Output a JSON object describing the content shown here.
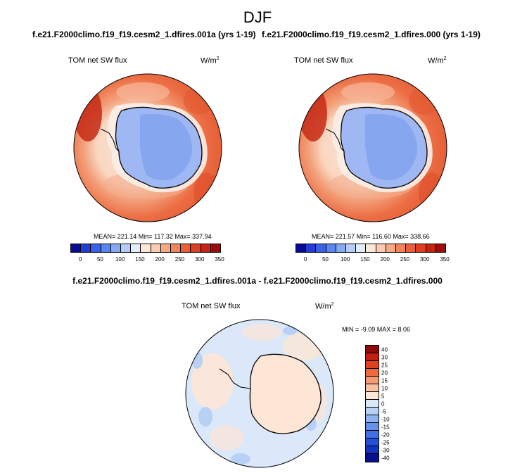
{
  "season": "DJF",
  "panel_a": {
    "title": "f.e21.F2000climo.f19_f19.cesm2_1.dfires.001a (yrs 1-19)",
    "variable": "TOM net SW flux",
    "units": "W/m",
    "units_exp": "2",
    "stats": "MEAN= 221.14   Min= 117.32   Max= 337.94"
  },
  "panel_b": {
    "title": "f.e21.F2000climo.f19_f19.cesm2_1.dfires.000 (yrs 1-19)",
    "variable": "TOM net SW flux",
    "units": "W/m",
    "units_exp": "2",
    "stats": "MEAN= 221.57   Min= 116.60   Max= 338.66"
  },
  "abs_colorbar": {
    "colors": [
      "#0a0a96",
      "#1f3fd2",
      "#3a62e6",
      "#5a86f0",
      "#86a9f4",
      "#b6ccf8",
      "#e3eefc",
      "#fde8d8",
      "#fbcbb0",
      "#f7a984",
      "#f2845a",
      "#e9603a",
      "#dc4020",
      "#c42412",
      "#9b0d0b"
    ],
    "tick_labels": [
      "0",
      "50",
      "100",
      "150",
      "200",
      "250",
      "300",
      "350"
    ]
  },
  "diff": {
    "title": "f.e21.F2000climo.f19_f19.cesm2_1.dfires.001a - f.e21.F2000climo.f19_f19.cesm2_1.dfires.000",
    "variable": "TOM net SW flux",
    "units": "W/m",
    "units_exp": "2",
    "stats": "MIN =  -9.09 MAX =   8.06",
    "colorbar": {
      "colors_top_to_bottom": [
        "#8e0b0b",
        "#c21f12",
        "#df4020",
        "#ee6b40",
        "#f49a72",
        "#f8c2a2",
        "#fde6d6",
        "#dbe8fa",
        "#b8cff6",
        "#8fb1f0",
        "#6690ea",
        "#4170e2",
        "#2550d8",
        "#1232c0",
        "#06108a"
      ],
      "tick_labels_top_to_bottom": [
        "40",
        "30",
        "25",
        "20",
        "15",
        "10",
        "5",
        "0",
        "-5",
        "-10",
        "-15",
        "-20",
        "-25",
        "-30",
        "-40"
      ]
    }
  }
}
